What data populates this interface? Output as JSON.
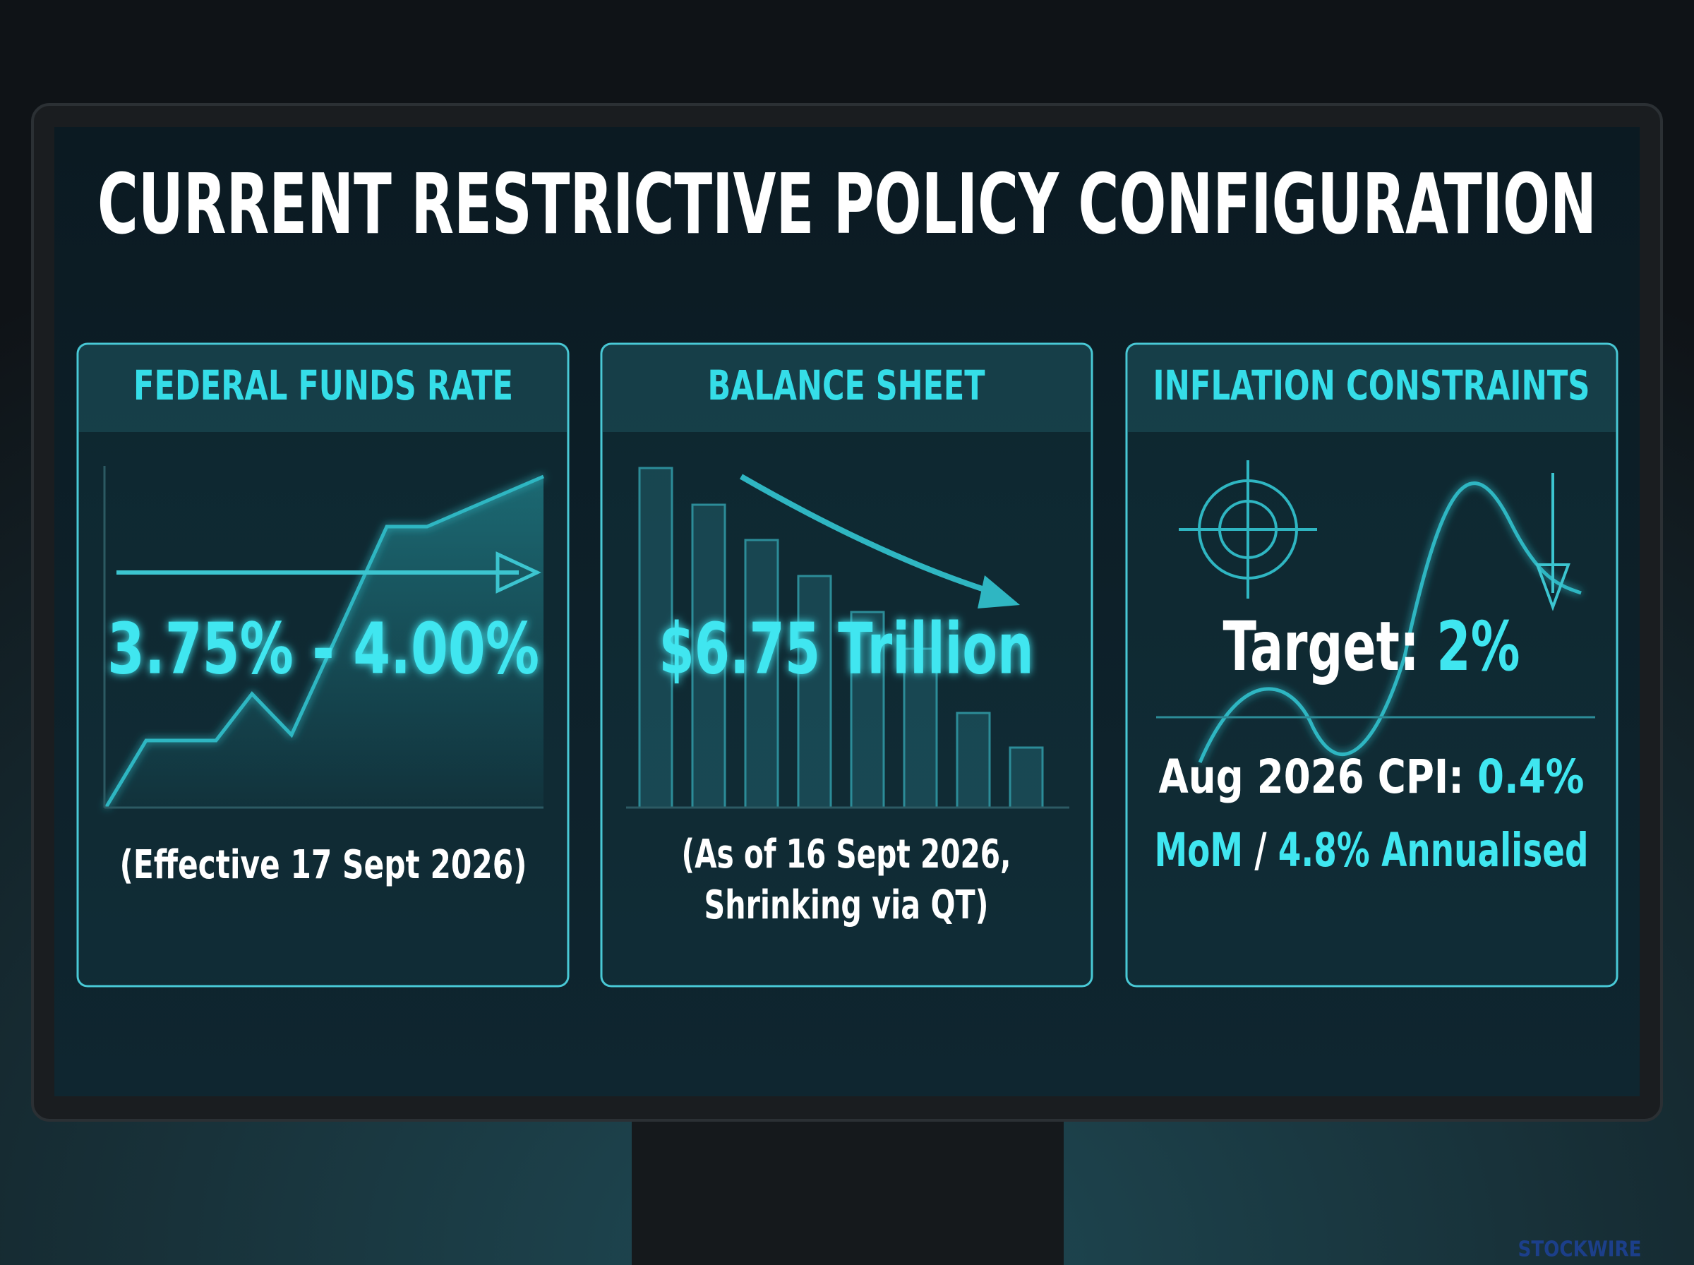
{
  "title": "CURRENT RESTRICTIVE POLICY CONFIGURATION",
  "panels": [
    {
      "header": "FEDERAL FUNDS RATE",
      "value": "3.75% - 4.00%",
      "note": [
        "(Effective 17 Sept 2026)"
      ]
    },
    {
      "header": "BALANCE SHEET",
      "value": "$6.75 Trillion",
      "note": [
        "(As of 16 Sept 2026,",
        "Shrinking via QT)"
      ]
    },
    {
      "header": "INFLATION CONSTRAINTS",
      "target": [
        "Target:",
        "2%"
      ],
      "cpi": [
        [
          "Aug 2026 CPI:",
          "0.4%"
        ],
        [
          "MoM",
          "/",
          "4.8% Annualised"
        ]
      ]
    }
  ],
  "watermark": "STOCKWIRE"
}
